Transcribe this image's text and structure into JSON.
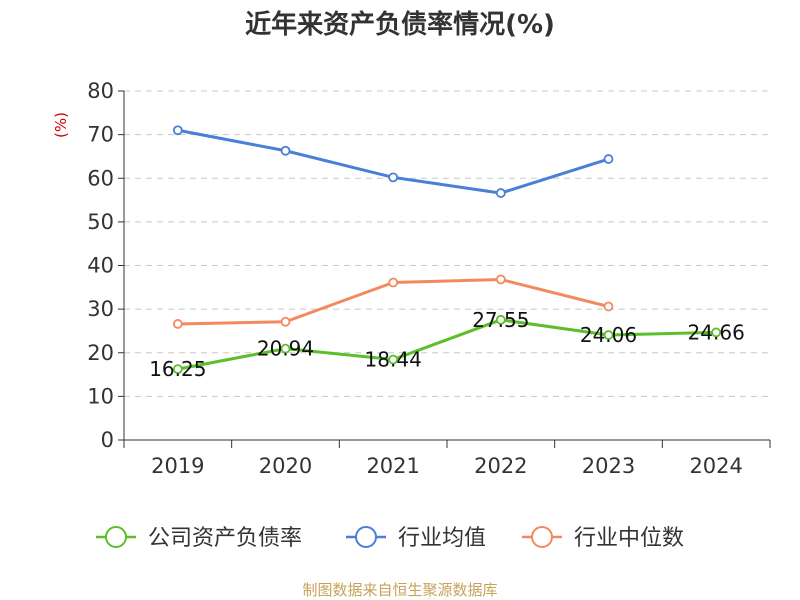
{
  "chart_data": {
    "type": "line",
    "title": "近年来资产负债率情况(%)",
    "unit_label": "(%)",
    "categories": [
      "2019",
      "2020",
      "2021",
      "2022",
      "2023",
      "2024"
    ],
    "ylim": [
      0,
      80
    ],
    "yticks": [
      0,
      10,
      20,
      30,
      40,
      50,
      60,
      70,
      80
    ],
    "grid": true,
    "legend_position": "bottom",
    "series": [
      {
        "name": "公司资产负债率",
        "color": "#5cbf2a",
        "show_labels": true,
        "values": [
          16.25,
          20.94,
          18.44,
          27.55,
          24.06,
          24.66
        ],
        "labels": [
          "16.25",
          "20.94",
          "18.44",
          "27.55",
          "24.06",
          "24.66"
        ]
      },
      {
        "name": "行业均值",
        "color": "#4a7fd8",
        "show_labels": false,
        "values": [
          71.0,
          66.3,
          60.2,
          56.6,
          64.4,
          null
        ]
      },
      {
        "name": "行业中位数",
        "color": "#f4895f",
        "show_labels": false,
        "values": [
          26.6,
          27.1,
          36.1,
          36.8,
          30.6,
          null
        ]
      }
    ],
    "source": "制图数据来自恒生聚源数据库"
  }
}
